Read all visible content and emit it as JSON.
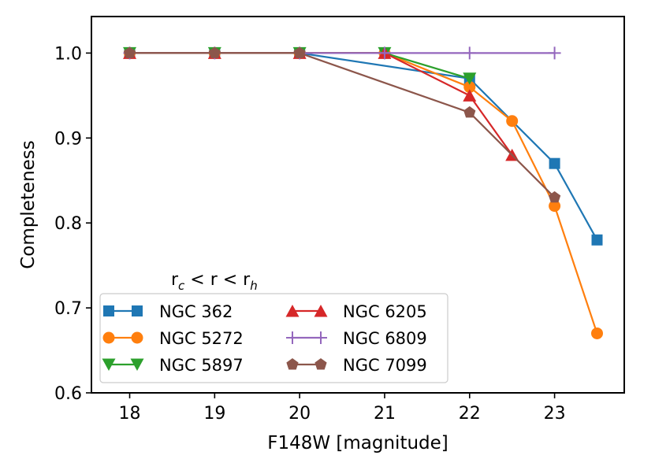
{
  "chart_data": {
    "type": "line",
    "title": "",
    "xlabel": "F148W [magnitude]",
    "ylabel": "Completeness",
    "xlim": [
      17.55,
      23.82
    ],
    "ylim": [
      0.6,
      1.043
    ],
    "xticks": [
      18,
      19,
      20,
      21,
      22,
      23
    ],
    "yticks": [
      0.6,
      0.7,
      0.8,
      0.9,
      1.0
    ],
    "xtick_labels": [
      "18",
      "19",
      "20",
      "21",
      "22",
      "23"
    ],
    "ytick_labels": [
      "0.6",
      "0.7",
      "0.8",
      "0.9",
      "1.0"
    ],
    "legend": {
      "title": "r_c < r < r_h",
      "title_parts": [
        "r",
        "c",
        " < r < r",
        "h"
      ],
      "position": "lower-left",
      "columns": 2
    },
    "series": [
      {
        "name": "NGC 362",
        "color": "#1f77b4",
        "marker": "square",
        "x": [
          18,
          19,
          20,
          22,
          23,
          23.5
        ],
        "y": [
          1.0,
          1.0,
          1.0,
          0.97,
          0.87,
          0.78
        ]
      },
      {
        "name": "NGC 5272",
        "color": "#ff7f0e",
        "marker": "circle",
        "x": [
          18,
          19,
          20,
          21,
          22,
          22.5,
          23,
          23.5
        ],
        "y": [
          1.0,
          1.0,
          1.0,
          1.0,
          0.96,
          0.92,
          0.82,
          0.67
        ]
      },
      {
        "name": "NGC 5897",
        "color": "#2ca02c",
        "marker": "triangle-down",
        "x": [
          18,
          19,
          20,
          21,
          22
        ],
        "y": [
          1.0,
          1.0,
          1.0,
          1.0,
          0.97
        ]
      },
      {
        "name": "NGC 6205",
        "color": "#d62728",
        "marker": "triangle-up",
        "x": [
          18,
          19,
          20,
          21,
          22,
          22.5
        ],
        "y": [
          1.0,
          1.0,
          1.0,
          1.0,
          0.95,
          0.88
        ]
      },
      {
        "name": "NGC 6809",
        "color": "#9467bd",
        "marker": "plus",
        "x": [
          18,
          19,
          20,
          21,
          22,
          23
        ],
        "y": [
          1.0,
          1.0,
          1.0,
          1.0,
          1.0,
          1.0
        ]
      },
      {
        "name": "NGC 7099",
        "color": "#8c564b",
        "marker": "pentagon",
        "x": [
          18,
          19,
          20,
          22,
          23
        ],
        "y": [
          1.0,
          1.0,
          1.0,
          0.93,
          0.83
        ]
      }
    ]
  }
}
